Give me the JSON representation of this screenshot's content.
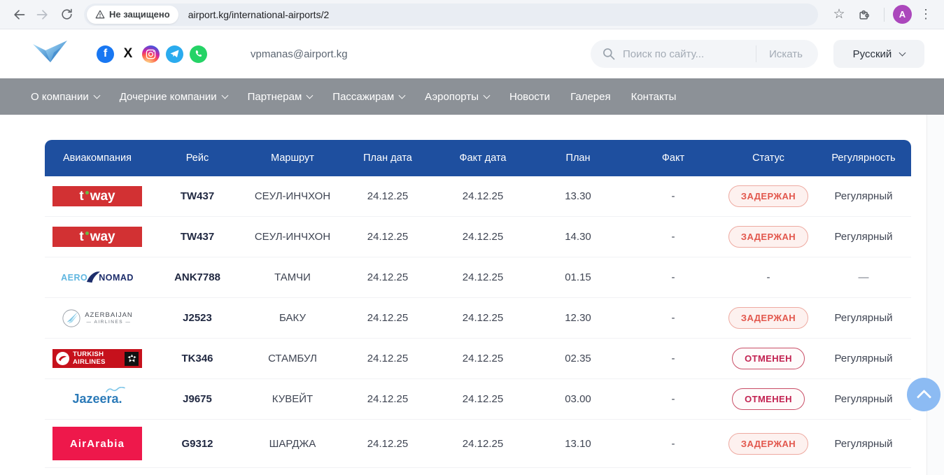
{
  "browser": {
    "security_chip": "Не защищено",
    "url": "airport.kg/international-airports/2",
    "avatar_letter": "A"
  },
  "header": {
    "email": "vpmanas@airport.kg",
    "search": {
      "placeholder": "Поиск по сайту...",
      "button": "Искать"
    },
    "language": {
      "label": "Русский"
    },
    "social": [
      "facebook",
      "x",
      "instagram",
      "telegram",
      "whatsapp"
    ]
  },
  "nav": {
    "items": [
      {
        "label": "О компании",
        "dropdown": true
      },
      {
        "label": "Дочерние компании",
        "dropdown": true
      },
      {
        "label": "Партнерам",
        "dropdown": true
      },
      {
        "label": "Пассажирам",
        "dropdown": true
      },
      {
        "label": "Аэропорты",
        "dropdown": true
      },
      {
        "label": "Новости",
        "dropdown": false
      },
      {
        "label": "Галерея",
        "dropdown": false
      },
      {
        "label": "Контакты",
        "dropdown": false
      }
    ]
  },
  "table": {
    "columns": [
      "Авиакомпания",
      "Рейс",
      "Маршрут",
      "План дата",
      "Факт дата",
      "План",
      "Факт",
      "Статус",
      "Регулярность"
    ],
    "rows": [
      {
        "airline": {
          "style": "tway",
          "name": "t'way",
          "text": "t'way"
        },
        "flight": "TW437",
        "route": "СЕУЛ-ИНЧХОН",
        "plan_date": "24.12.25",
        "fact_date": "24.12.25",
        "plan_time": "13.30",
        "fact": "-",
        "status": {
          "label": "ЗАДЕРЖАН",
          "type": "delayed"
        },
        "regularity": "Регулярный"
      },
      {
        "airline": {
          "style": "tway",
          "name": "t'way",
          "text": "t'way"
        },
        "flight": "TW437",
        "route": "СЕУЛ-ИНЧХОН",
        "plan_date": "24.12.25",
        "fact_date": "24.12.25",
        "plan_time": "14.30",
        "fact": "-",
        "status": {
          "label": "ЗАДЕРЖАН",
          "type": "delayed"
        },
        "regularity": "Регулярный"
      },
      {
        "airline": {
          "style": "aeronomad",
          "name": "Aero Nomad",
          "text1": "AERO",
          "text2": "NOMAD"
        },
        "flight": "ANK7788",
        "route": "ТАМЧИ",
        "plan_date": "24.12.25",
        "fact_date": "24.12.25",
        "plan_time": "01.15",
        "fact": "-",
        "status": {
          "label": "-",
          "type": "none"
        },
        "regularity": "—"
      },
      {
        "airline": {
          "style": "azerbaijan",
          "name": "Azerbaijan Airlines",
          "text1": "AZERBAIJAN",
          "text2": "AIRLINES"
        },
        "flight": "J2523",
        "route": "БАКУ",
        "plan_date": "24.12.25",
        "fact_date": "24.12.25",
        "plan_time": "12.30",
        "fact": "-",
        "status": {
          "label": "ЗАДЕРЖАН",
          "type": "delayed"
        },
        "regularity": "Регулярный"
      },
      {
        "airline": {
          "style": "turkish",
          "name": "Turkish Airlines",
          "text1": "TURKISH",
          "text2": "AIRLINES"
        },
        "flight": "TK346",
        "route": "СТАМБУЛ",
        "plan_date": "24.12.25",
        "fact_date": "24.12.25",
        "plan_time": "02.35",
        "fact": "-",
        "status": {
          "label": "ОТМЕНЕН",
          "type": "cancelled"
        },
        "regularity": "Регулярный"
      },
      {
        "airline": {
          "style": "jazeera",
          "name": "Jazeera",
          "text": "Jazeera."
        },
        "flight": "J9675",
        "route": "КУВЕЙТ",
        "plan_date": "24.12.25",
        "fact_date": "24.12.25",
        "plan_time": "03.00",
        "fact": "-",
        "status": {
          "label": "ОТМЕНЕН",
          "type": "cancelled"
        },
        "regularity": "Регулярный"
      },
      {
        "airline": {
          "style": "airarabia",
          "name": "Air Arabia",
          "text": "AirArabia"
        },
        "flight": "G9312",
        "route": "ШАРДЖА",
        "plan_date": "24.12.25",
        "fact_date": "24.12.25",
        "plan_time": "13.10",
        "fact": "-",
        "status": {
          "label": "ЗАДЕРЖАН",
          "type": "delayed"
        },
        "regularity": "Регулярный"
      }
    ]
  },
  "colors": {
    "header-blue": "#1e4f9f",
    "nav-gray": "#8c9197",
    "delayed-text": "#e2574d",
    "delayed-border": "#eeaaa1",
    "delayed-bg": "#fdf1ef",
    "cancelled-text": "#c22150",
    "cancelled-border": "#c94e67",
    "cancelled-bg": "#fefbfb",
    "tway-red": "#d23133",
    "airarabia-red": "#ee184b",
    "turkish-red": "#c6111c",
    "facebook-blue": "#1877f2",
    "telegram-blue": "#2aabee",
    "whatsapp-green": "#25d366",
    "avatar-purple": "#ab47bc",
    "scrolltop-blue": "#8cbbf3"
  }
}
